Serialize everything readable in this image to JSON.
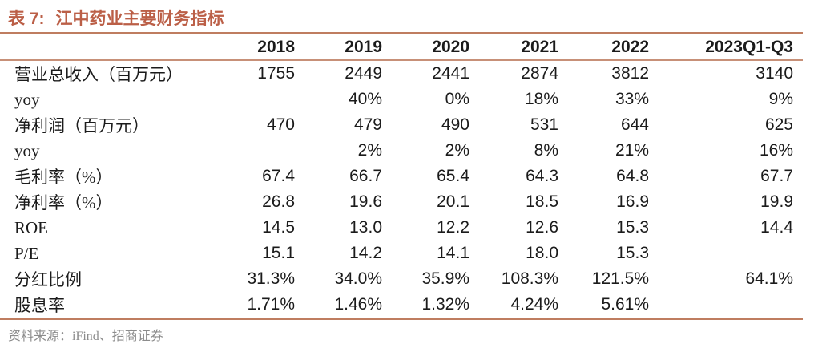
{
  "title": {
    "prefix": "表 7:",
    "text": "江中药业主要财务指标"
  },
  "table": {
    "columns": [
      "",
      "2018",
      "2019",
      "2020",
      "2021",
      "2022",
      "2023Q1-Q3"
    ],
    "rows": [
      {
        "label": "营业总收入（百万元）",
        "values": [
          "1755",
          "2449",
          "2441",
          "2874",
          "3812",
          "3140"
        ]
      },
      {
        "label": "yoy",
        "values": [
          "",
          "40%",
          "0%",
          "18%",
          "33%",
          "9%"
        ]
      },
      {
        "label": "净利润（百万元）",
        "values": [
          "470",
          "479",
          "490",
          "531",
          "644",
          "625"
        ]
      },
      {
        "label": "yoy",
        "values": [
          "",
          "2%",
          "2%",
          "8%",
          "21%",
          "16%"
        ]
      },
      {
        "label": "毛利率（%）",
        "values": [
          "67.4",
          "66.7",
          "65.4",
          "64.3",
          "64.8",
          "67.7"
        ]
      },
      {
        "label": "净利率（%）",
        "values": [
          "26.8",
          "19.6",
          "20.1",
          "18.5",
          "16.9",
          "19.9"
        ]
      },
      {
        "label": "ROE",
        "values": [
          "14.5",
          "13.0",
          "12.2",
          "12.6",
          "15.3",
          "14.4"
        ]
      },
      {
        "label": "P/E",
        "values": [
          "15.1",
          "14.2",
          "14.1",
          "18.0",
          "15.3",
          ""
        ]
      },
      {
        "label": "分红比例",
        "values": [
          "31.3%",
          "34.0%",
          "35.9%",
          "108.3%",
          "121.5%",
          "64.1%"
        ]
      },
      {
        "label": "股息率",
        "values": [
          "1.71%",
          "1.46%",
          "1.32%",
          "4.24%",
          "5.61%",
          ""
        ]
      }
    ]
  },
  "source": {
    "text": "资料来源：iFind、招商证券"
  },
  "colors": {
    "title": "#BB5F47",
    "rule": "#BF7D60",
    "thin_rule": "#C79078",
    "source_text": "#8C8C8C",
    "data_text": "#1B1B1B"
  }
}
